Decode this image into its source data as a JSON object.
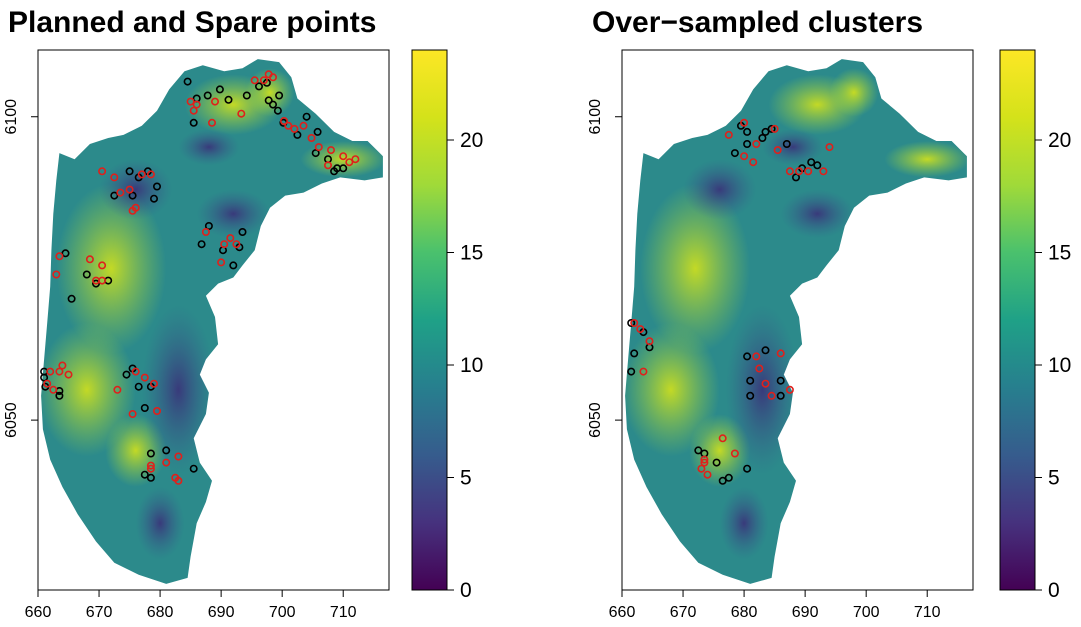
{
  "chart_data": [
    {
      "type": "heatmap",
      "title": "Planned and Spare points",
      "x_ticks": [
        660,
        670,
        680,
        690,
        700,
        710
      ],
      "y_ticks": [
        "6050",
        "6100"
      ],
      "xlim": [
        660,
        717.5
      ],
      "ylim": [
        6022,
        6111
      ],
      "colorbar": {
        "ticks": [
          "0",
          "5",
          "10",
          "15",
          "20"
        ],
        "range": [
          0,
          24
        ]
      },
      "colors": {
        "planned": "#000000",
        "spare": "#e0201b"
      },
      "series": [
        {
          "name": "planned",
          "points": [
            [
              684.5,
              6105.8
            ],
            [
              686.0,
              6103.0
            ],
            [
              687.8,
              6103.5
            ],
            [
              689.8,
              6104.5
            ],
            [
              691.2,
              6102.8
            ],
            [
              685.5,
              6099.0
            ],
            [
              694.2,
              6103.5
            ],
            [
              696.2,
              6105.0
            ],
            [
              697.5,
              6105.6
            ],
            [
              697.8,
              6102.7
            ],
            [
              699.5,
              6103.5
            ],
            [
              698.5,
              6102.0
            ],
            [
              699.3,
              6101.0
            ],
            [
              700.2,
              6099.0
            ],
            [
              704.0,
              6100.0
            ],
            [
              702.5,
              6097.0
            ],
            [
              705.8,
              6097.5
            ],
            [
              705.5,
              6094.0
            ],
            [
              707.5,
              6093.0
            ],
            [
              709.0,
              6091.5
            ],
            [
              710.0,
              6091.5
            ],
            [
              708.5,
              6091.0
            ],
            [
              675.0,
              6091.0
            ],
            [
              678.0,
              6091.0
            ],
            [
              676.5,
              6090.0
            ],
            [
              679.5,
              6088.5
            ],
            [
              672.5,
              6087.0
            ],
            [
              675.5,
              6087.0
            ],
            [
              679.0,
              6086.5
            ],
            [
              688.0,
              6082.0
            ],
            [
              693.5,
              6081.0
            ],
            [
              686.8,
              6079.0
            ],
            [
              690.3,
              6078.0
            ],
            [
              693.0,
              6078.5
            ],
            [
              692.0,
              6075.5
            ],
            [
              664.5,
              6077.5
            ],
            [
              668.0,
              6074.0
            ],
            [
              671.5,
              6073.0
            ],
            [
              669.5,
              6072.5
            ],
            [
              665.5,
              6070.0
            ],
            [
              661.0,
              6058.0
            ],
            [
              661.0,
              6057.0
            ],
            [
              661.2,
              6055.5
            ],
            [
              663.5,
              6054.8
            ],
            [
              663.5,
              6054.0
            ],
            [
              674.5,
              6057.5
            ],
            [
              675.5,
              6058.5
            ],
            [
              676.5,
              6055.5
            ],
            [
              678.5,
              6055.5
            ],
            [
              677.5,
              6052.0
            ],
            [
              678.5,
              6044.5
            ],
            [
              681.0,
              6045.0
            ],
            [
              677.5,
              6041.0
            ],
            [
              678.5,
              6040.5
            ],
            [
              685.5,
              6042.0
            ]
          ]
        },
        {
          "name": "spare",
          "points": [
            [
              685.0,
              6102.5
            ],
            [
              686.0,
              6102.0
            ],
            [
              685.5,
              6101.0
            ],
            [
              689.0,
              6102.5
            ],
            [
              688.5,
              6099.0
            ],
            [
              693.3,
              6100.5
            ],
            [
              695.5,
              6106.0
            ],
            [
              697.8,
              6107.0
            ],
            [
              697.0,
              6106.0
            ],
            [
              698.5,
              6106.5
            ],
            [
              700.3,
              6099.3
            ],
            [
              701.0,
              6098.5
            ],
            [
              702.0,
              6098.0
            ],
            [
              703.5,
              6098.5
            ],
            [
              704.8,
              6096.5
            ],
            [
              706.0,
              6095.0
            ],
            [
              708.0,
              6094.5
            ],
            [
              710.0,
              6093.5
            ],
            [
              712.0,
              6093.0
            ],
            [
              707.5,
              6092.0
            ],
            [
              711.0,
              6092.5
            ],
            [
              670.5,
              6091.0
            ],
            [
              672.5,
              6090.0
            ],
            [
              677.0,
              6090.5
            ],
            [
              678.5,
              6090.5
            ],
            [
              675.0,
              6088.0
            ],
            [
              673.5,
              6087.5
            ],
            [
              676.0,
              6085.0
            ],
            [
              675.5,
              6084.5
            ],
            [
              687.5,
              6081.0
            ],
            [
              690.5,
              6079.0
            ],
            [
              691.5,
              6080.0
            ],
            [
              692.5,
              6079.0
            ],
            [
              690.0,
              6076.0
            ],
            [
              663.5,
              6077.0
            ],
            [
              663.0,
              6074.0
            ],
            [
              668.5,
              6076.5
            ],
            [
              670.5,
              6075.5
            ],
            [
              669.5,
              6073.0
            ],
            [
              670.5,
              6073.0
            ],
            [
              662.0,
              6058.0
            ],
            [
              664.0,
              6059.0
            ],
            [
              663.5,
              6058.0
            ],
            [
              665.0,
              6057.5
            ],
            [
              661.5,
              6056.0
            ],
            [
              662.5,
              6055.0
            ],
            [
              673.0,
              6055.0
            ],
            [
              676.0,
              6058.0
            ],
            [
              677.5,
              6057.0
            ],
            [
              679.0,
              6056.0
            ],
            [
              675.5,
              6051.0
            ],
            [
              679.5,
              6051.5
            ],
            [
              678.5,
              6042.5
            ],
            [
              683.0,
              6044.0
            ],
            [
              678.5,
              6042.0
            ],
            [
              681.0,
              6043.0
            ],
            [
              682.5,
              6040.5
            ],
            [
              683.0,
              6040.0
            ]
          ]
        }
      ]
    },
    {
      "type": "heatmap",
      "title": "Over−sampled clusters",
      "x_ticks": [
        660,
        670,
        680,
        690,
        700,
        710
      ],
      "y_ticks": [
        "6050",
        "6100"
      ],
      "xlim": [
        660,
        717.5
      ],
      "ylim": [
        6022,
        6111
      ],
      "colorbar": {
        "ticks": [
          "0",
          "5",
          "10",
          "15",
          "20"
        ],
        "range": [
          0,
          24
        ]
      },
      "colors": {
        "planned": "#000000",
        "spare": "#e0201b"
      },
      "series": [
        {
          "name": "planned",
          "points": [
            [
              679.5,
              6098.5
            ],
            [
              680.5,
              6097.5
            ],
            [
              683.5,
              6097.5
            ],
            [
              684.5,
              6098.0
            ],
            [
              683.0,
              6096.5
            ],
            [
              680.5,
              6095.5
            ],
            [
              678.5,
              6094.0
            ],
            [
              687.0,
              6095.5
            ],
            [
              691.0,
              6092.5
            ],
            [
              692.0,
              6092.0
            ],
            [
              689.5,
              6091.5
            ],
            [
              688.5,
              6090.0
            ],
            [
              661.5,
              6066.0
            ],
            [
              662.0,
              6061.0
            ],
            [
              663.5,
              6064.5
            ],
            [
              664.5,
              6062.0
            ],
            [
              661.5,
              6058.0
            ],
            [
              680.5,
              6060.5
            ],
            [
              683.5,
              6061.5
            ],
            [
              681.0,
              6056.5
            ],
            [
              681.0,
              6054.0
            ],
            [
              686.0,
              6056.5
            ],
            [
              686.0,
              6054.0
            ],
            [
              672.5,
              6045.0
            ],
            [
              673.5,
              6044.5
            ],
            [
              675.5,
              6043.0
            ],
            [
              677.5,
              6040.5
            ],
            [
              676.5,
              6040.0
            ],
            [
              680.5,
              6042.0
            ]
          ]
        },
        {
          "name": "spare",
          "points": [
            [
              677.5,
              6097.0
            ],
            [
              680.0,
              6099.0
            ],
            [
              682.0,
              6095.5
            ],
            [
              685.0,
              6098.0
            ],
            [
              680.0,
              6093.5
            ],
            [
              681.5,
              6092.5
            ],
            [
              685.5,
              6094.5
            ],
            [
              690.5,
              6091.0
            ],
            [
              687.5,
              6091.0
            ],
            [
              689.0,
              6091.0
            ],
            [
              693.0,
              6091.0
            ],
            [
              694.0,
              6095.0
            ],
            [
              662.0,
              6066.0
            ],
            [
              663.0,
              6065.0
            ],
            [
              664.5,
              6063.0
            ],
            [
              663.5,
              6058.0
            ],
            [
              682.0,
              6060.5
            ],
            [
              686.0,
              6061.0
            ],
            [
              682.5,
              6058.5
            ],
            [
              683.5,
              6056.0
            ],
            [
              684.5,
              6054.0
            ],
            [
              687.5,
              6055.0
            ],
            [
              673.5,
              6043.5
            ],
            [
              673.5,
              6043.0
            ],
            [
              673.0,
              6042.0
            ],
            [
              674.0,
              6041.0
            ],
            [
              676.5,
              6047.0
            ],
            [
              678.5,
              6044.5
            ]
          ]
        }
      ]
    }
  ]
}
